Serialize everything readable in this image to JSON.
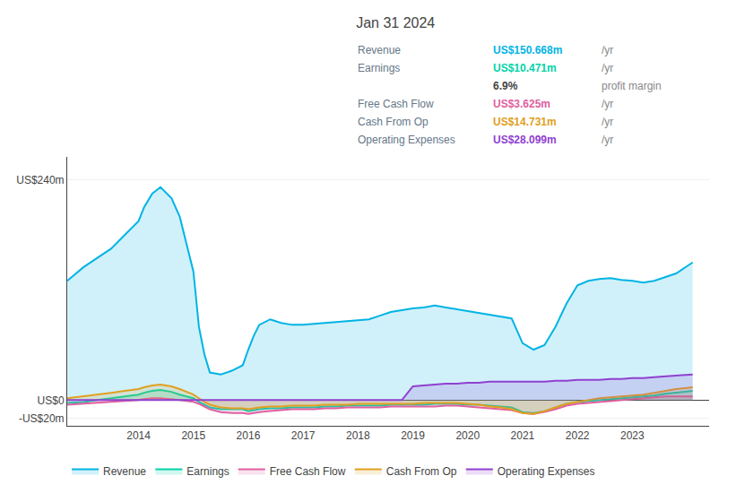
{
  "chart_data": {
    "type": "area",
    "title": "Jan 31 2024",
    "x": [
      2012.7,
      2013.0,
      2013.25,
      2013.5,
      2013.75,
      2014.0,
      2014.1,
      2014.25,
      2014.4,
      2014.6,
      2014.75,
      2015.0,
      2015.1,
      2015.2,
      2015.3,
      2015.5,
      2015.7,
      2015.9,
      2016.0,
      2016.1,
      2016.2,
      2016.4,
      2016.6,
      2016.8,
      2017.0,
      2017.2,
      2017.4,
      2017.6,
      2017.8,
      2018.0,
      2018.2,
      2018.4,
      2018.6,
      2018.8,
      2019.0,
      2019.2,
      2019.4,
      2019.6,
      2019.8,
      2020.0,
      2020.2,
      2020.4,
      2020.6,
      2020.8,
      2021.0,
      2021.2,
      2021.4,
      2021.6,
      2021.8,
      2022.0,
      2022.2,
      2022.4,
      2022.6,
      2022.8,
      2023.0,
      2023.2,
      2023.4,
      2023.6,
      2023.8,
      2024.1
    ],
    "series": [
      {
        "name": "Revenue",
        "color": "#00b4e4",
        "values": [
          130,
          145,
          155,
          165,
          180,
          195,
          210,
          225,
          232,
          220,
          200,
          140,
          80,
          50,
          30,
          28,
          32,
          38,
          55,
          70,
          82,
          88,
          84,
          82,
          82,
          83,
          84,
          85,
          86,
          87,
          88,
          92,
          96,
          98,
          100,
          101,
          103,
          101,
          99,
          97,
          95,
          93,
          91,
          89,
          62,
          55,
          60,
          80,
          105,
          125,
          130,
          132,
          133,
          131,
          130,
          128,
          130,
          134,
          138,
          150
        ]
      },
      {
        "name": "Earnings",
        "color": "#00d4a8",
        "values": [
          -3,
          -2,
          0,
          2,
          4,
          6,
          8,
          10,
          11,
          9,
          6,
          2,
          -2,
          -5,
          -8,
          -10,
          -10,
          -10,
          -12,
          -11,
          -10,
          -9,
          -9,
          -8,
          -8,
          -8,
          -7,
          -7,
          -6,
          -6,
          -6,
          -6,
          -5,
          -5,
          -5,
          -5,
          -4,
          -4,
          -4,
          -5,
          -5,
          -6,
          -7,
          -8,
          -13,
          -14,
          -12,
          -8,
          -4,
          -2,
          -1,
          0,
          1,
          2,
          3,
          4,
          5,
          7,
          8,
          10
        ]
      },
      {
        "name": "Free Cash Flow",
        "color": "#e060a0",
        "values": [
          -5,
          -4,
          -3,
          -2,
          -1,
          0,
          1,
          2,
          2,
          1,
          0,
          -2,
          -4,
          -7,
          -10,
          -13,
          -14,
          -14,
          -15,
          -14,
          -13,
          -12,
          -11,
          -10,
          -10,
          -10,
          -9,
          -9,
          -8,
          -8,
          -8,
          -8,
          -7,
          -7,
          -7,
          -7,
          -7,
          -6,
          -6,
          -7,
          -8,
          -9,
          -10,
          -11,
          -14,
          -15,
          -13,
          -10,
          -6,
          -4,
          -3,
          -2,
          -1,
          0,
          1,
          2,
          3,
          4,
          4,
          4
        ]
      },
      {
        "name": "Cash From Op",
        "color": "#e0a020",
        "values": [
          2,
          4,
          6,
          8,
          10,
          12,
          14,
          16,
          17,
          15,
          12,
          6,
          2,
          -2,
          -5,
          -8,
          -9,
          -9,
          -10,
          -9,
          -8,
          -7,
          -7,
          -6,
          -6,
          -6,
          -5,
          -5,
          -5,
          -4,
          -4,
          -4,
          -4,
          -4,
          -4,
          -3,
          -3,
          -3,
          -3,
          -4,
          -5,
          -7,
          -8,
          -10,
          -14,
          -15,
          -12,
          -8,
          -4,
          -2,
          0,
          2,
          3,
          4,
          5,
          6,
          8,
          10,
          12,
          14
        ]
      },
      {
        "name": "Operating Expenses",
        "color": "#9040d0",
        "values": [
          0,
          0,
          0,
          0,
          0,
          0,
          0,
          0,
          0,
          0,
          0,
          0,
          0,
          0,
          0,
          0,
          0,
          0,
          0,
          0,
          0,
          0,
          0,
          0,
          0,
          0,
          0,
          0,
          0,
          0,
          0,
          0,
          0,
          0,
          15,
          16,
          17,
          18,
          18,
          19,
          19,
          20,
          20,
          20,
          20,
          20,
          20,
          21,
          21,
          22,
          22,
          22,
          23,
          23,
          24,
          24,
          25,
          26,
          27,
          28
        ]
      }
    ],
    "xlim": [
      2012.7,
      2024.4
    ],
    "xticks": [
      2014,
      2015,
      2016,
      2017,
      2018,
      2019,
      2020,
      2021,
      2022,
      2023
    ],
    "ylim": [
      -28,
      265
    ],
    "yticks": [
      {
        "value": 240,
        "label": "US$240m"
      },
      {
        "value": 0,
        "label": "US$0"
      },
      {
        "value": -20,
        "label": "-US$20m"
      }
    ],
    "grid": true,
    "legend": "bottom",
    "annotations": [
      {
        "label": "Revenue",
        "value": "US$150.668m",
        "suffix": "/yr",
        "color": "#00b4e4"
      },
      {
        "label": "Earnings",
        "value": "US$10.471m",
        "suffix": "/yr",
        "color": "#00d4a8"
      },
      {
        "value": "6.9%",
        "suffix": "profit margin"
      },
      {
        "label": "Free Cash Flow",
        "value": "US$3.625m",
        "suffix": "/yr",
        "color": "#e060a0"
      },
      {
        "label": "Cash From Op",
        "value": "US$14.731m",
        "suffix": "/yr",
        "color": "#e0a020"
      },
      {
        "label": "Operating Expenses",
        "value": "US$28.099m",
        "suffix": "/yr",
        "color": "#9040d0"
      }
    ]
  }
}
